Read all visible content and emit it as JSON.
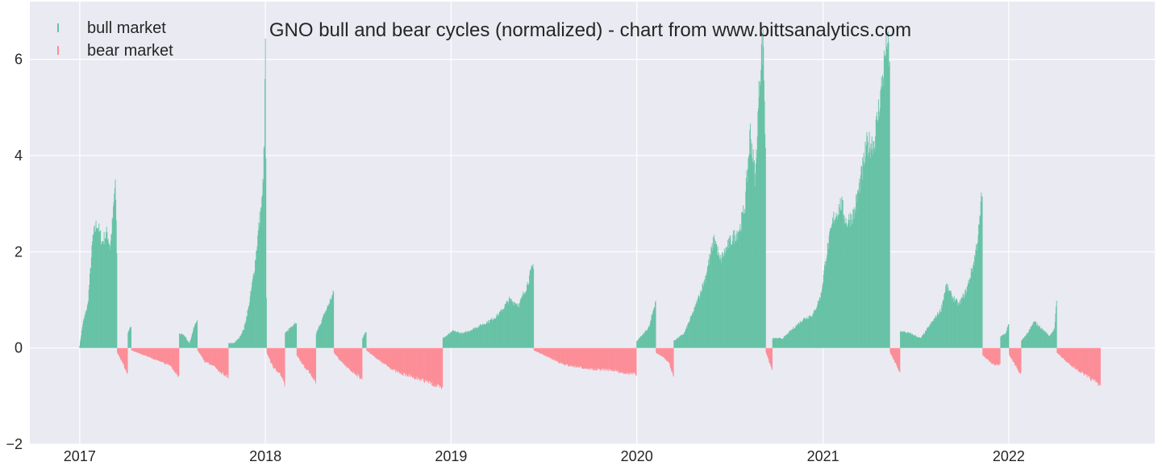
{
  "chart_data": {
    "type": "bar",
    "title": "GNO bull and bear cycles (normalized)  - chart from www.bittsanalytics.com",
    "xlabel": "",
    "ylabel": "",
    "ylim": [
      -2,
      7.2
    ],
    "xlim": [
      "2016-09-25",
      "2022-10-15"
    ],
    "x_ticks": [
      "2017",
      "2018",
      "2019",
      "2020",
      "2021",
      "2022"
    ],
    "x_tick_dates": [
      "2017-01-01",
      "2018-01-01",
      "2019-01-01",
      "2020-01-01",
      "2021-01-01",
      "2022-01-01"
    ],
    "y_ticks": [
      -2,
      0,
      2,
      4,
      6
    ],
    "grid": true,
    "legend_position": "top-left",
    "colors": {
      "bull": "#66c2a5",
      "bear": "#fc8d97",
      "background": "#eaeaf2",
      "grid": "#ffffff"
    },
    "series": [
      {
        "name": "bull market",
        "key": "bull"
      },
      {
        "name": "bear market",
        "key": "bear"
      }
    ],
    "cycles": [
      {
        "series": "bull",
        "start": "2017-01-01",
        "end": "2017-03-15",
        "points": [
          [
            0,
            0.05
          ],
          [
            6,
            0.5
          ],
          [
            16,
            0.9
          ],
          [
            26,
            2.3
          ],
          [
            34,
            2.6
          ],
          [
            44,
            2.2
          ],
          [
            54,
            2.4
          ],
          [
            60,
            2.1
          ],
          [
            66,
            2.8
          ],
          [
            70,
            3.5
          ],
          [
            73,
            2.0
          ]
        ]
      },
      {
        "series": "bear",
        "start": "2017-03-16",
        "end": "2017-04-05",
        "points": [
          [
            0,
            -0.1
          ],
          [
            10,
            -0.3
          ],
          [
            20,
            -0.55
          ]
        ]
      },
      {
        "series": "bull",
        "start": "2017-04-06",
        "end": "2017-04-12",
        "points": [
          [
            0,
            0.3
          ],
          [
            6,
            0.45
          ]
        ]
      },
      {
        "series": "bear",
        "start": "2017-04-13",
        "end": "2017-07-15",
        "points": [
          [
            0,
            -0.05
          ],
          [
            25,
            -0.15
          ],
          [
            50,
            -0.25
          ],
          [
            75,
            -0.35
          ],
          [
            92,
            -0.6
          ]
        ]
      },
      {
        "series": "bull",
        "start": "2017-07-16",
        "end": "2017-08-20",
        "points": [
          [
            0,
            0.3
          ],
          [
            10,
            0.25
          ],
          [
            20,
            0.1
          ],
          [
            28,
            0.4
          ],
          [
            35,
            0.6
          ]
        ]
      },
      {
        "series": "bear",
        "start": "2017-08-21",
        "end": "2017-10-20",
        "points": [
          [
            0,
            -0.05
          ],
          [
            15,
            -0.3
          ],
          [
            30,
            -0.35
          ],
          [
            45,
            -0.5
          ],
          [
            60,
            -0.6
          ]
        ]
      },
      {
        "series": "bull",
        "start": "2017-10-21",
        "end": "2018-01-03",
        "points": [
          [
            0,
            0.1
          ],
          [
            10,
            0.1
          ],
          [
            20,
            0.2
          ],
          [
            30,
            0.4
          ],
          [
            40,
            0.9
          ],
          [
            50,
            1.6
          ],
          [
            60,
            2.6
          ],
          [
            66,
            3.1
          ],
          [
            70,
            4.2
          ],
          [
            72,
            6.5
          ],
          [
            74,
            1.0
          ]
        ]
      },
      {
        "series": "bear",
        "start": "2018-01-04",
        "end": "2018-02-08",
        "points": [
          [
            0,
            -0.1
          ],
          [
            10,
            -0.35
          ],
          [
            20,
            -0.5
          ],
          [
            30,
            -0.6
          ],
          [
            35,
            -0.75
          ]
        ]
      },
      {
        "series": "bull",
        "start": "2018-02-09",
        "end": "2018-03-03",
        "points": [
          [
            0,
            0.3
          ],
          [
            12,
            0.45
          ],
          [
            22,
            0.55
          ]
        ]
      },
      {
        "series": "bear",
        "start": "2018-03-04",
        "end": "2018-04-10",
        "points": [
          [
            0,
            -0.15
          ],
          [
            15,
            -0.4
          ],
          [
            25,
            -0.5
          ],
          [
            37,
            -0.7
          ]
        ]
      },
      {
        "series": "bull",
        "start": "2018-04-11",
        "end": "2018-05-15",
        "points": [
          [
            0,
            0.3
          ],
          [
            12,
            0.6
          ],
          [
            24,
            0.9
          ],
          [
            34,
            1.15
          ]
        ]
      },
      {
        "series": "bear",
        "start": "2018-05-16",
        "end": "2018-07-10",
        "points": [
          [
            0,
            -0.1
          ],
          [
            15,
            -0.3
          ],
          [
            30,
            -0.45
          ],
          [
            45,
            -0.55
          ],
          [
            55,
            -0.65
          ]
        ]
      },
      {
        "series": "bull",
        "start": "2018-07-11",
        "end": "2018-07-18",
        "points": [
          [
            0,
            0.2
          ],
          [
            7,
            0.35
          ]
        ]
      },
      {
        "series": "bear",
        "start": "2018-07-19",
        "end": "2018-12-15",
        "points": [
          [
            0,
            -0.05
          ],
          [
            30,
            -0.3
          ],
          [
            60,
            -0.5
          ],
          [
            90,
            -0.6
          ],
          [
            120,
            -0.7
          ],
          [
            149,
            -0.85
          ]
        ]
      },
      {
        "series": "bull",
        "start": "2018-12-16",
        "end": "2019-06-12",
        "points": [
          [
            0,
            0.2
          ],
          [
            20,
            0.35
          ],
          [
            40,
            0.3
          ],
          [
            60,
            0.4
          ],
          [
            90,
            0.55
          ],
          [
            110,
            0.7
          ],
          [
            130,
            1.0
          ],
          [
            150,
            0.9
          ],
          [
            165,
            1.3
          ],
          [
            178,
            1.75
          ]
        ]
      },
      {
        "series": "bear",
        "start": "2019-06-13",
        "end": "2019-12-31",
        "points": [
          [
            0,
            -0.05
          ],
          [
            30,
            -0.2
          ],
          [
            60,
            -0.35
          ],
          [
            90,
            -0.4
          ],
          [
            120,
            -0.45
          ],
          [
            150,
            -0.45
          ],
          [
            170,
            -0.5
          ],
          [
            201,
            -0.55
          ]
        ]
      },
      {
        "series": "bull",
        "start": "2020-01-01",
        "end": "2020-02-07",
        "points": [
          [
            0,
            0.15
          ],
          [
            10,
            0.25
          ],
          [
            25,
            0.45
          ],
          [
            37,
            1.0
          ]
        ]
      },
      {
        "series": "bear",
        "start": "2020-02-08",
        "end": "2020-03-13",
        "points": [
          [
            0,
            -0.1
          ],
          [
            15,
            -0.2
          ],
          [
            25,
            -0.3
          ],
          [
            34,
            -0.6
          ]
        ]
      },
      {
        "series": "bull",
        "start": "2020-03-14",
        "end": "2020-09-10",
        "points": [
          [
            0,
            0.15
          ],
          [
            20,
            0.3
          ],
          [
            40,
            0.8
          ],
          [
            60,
            1.4
          ],
          [
            80,
            2.3
          ],
          [
            90,
            1.8
          ],
          [
            110,
            2.2
          ],
          [
            130,
            2.5
          ],
          [
            140,
            3.0
          ],
          [
            150,
            4.5
          ],
          [
            160,
            3.5
          ],
          [
            168,
            5.5
          ],
          [
            172,
            6.2
          ],
          [
            176,
            6.3
          ],
          [
            180,
            4.0
          ]
        ]
      },
      {
        "series": "bear",
        "start": "2020-09-11",
        "end": "2020-09-23",
        "points": [
          [
            0,
            -0.1
          ],
          [
            12,
            -0.45
          ]
        ]
      },
      {
        "series": "bull",
        "start": "2020-09-24",
        "end": "2021-05-12",
        "points": [
          [
            0,
            0.2
          ],
          [
            20,
            0.2
          ],
          [
            40,
            0.4
          ],
          [
            60,
            0.6
          ],
          [
            80,
            0.7
          ],
          [
            95,
            1.1
          ],
          [
            105,
            1.9
          ],
          [
            120,
            2.7
          ],
          [
            135,
            3.0
          ],
          [
            145,
            2.6
          ],
          [
            160,
            2.8
          ],
          [
            175,
            3.6
          ],
          [
            185,
            4.2
          ],
          [
            200,
            4.3
          ],
          [
            215,
            5.5
          ],
          [
            225,
            6.5
          ],
          [
            230,
            5.7
          ]
        ]
      },
      {
        "series": "bear",
        "start": "2021-05-13",
        "end": "2021-06-01",
        "points": [
          [
            0,
            -0.1
          ],
          [
            10,
            -0.3
          ],
          [
            19,
            -0.5
          ]
        ]
      },
      {
        "series": "bull",
        "start": "2021-06-02",
        "end": "2021-11-10",
        "points": [
          [
            0,
            0.35
          ],
          [
            20,
            0.3
          ],
          [
            40,
            0.2
          ],
          [
            60,
            0.5
          ],
          [
            80,
            0.8
          ],
          [
            90,
            1.3
          ],
          [
            100,
            1.1
          ],
          [
            115,
            0.9
          ],
          [
            130,
            1.2
          ],
          [
            145,
            1.8
          ],
          [
            155,
            2.5
          ],
          [
            160,
            3.2
          ]
        ]
      },
      {
        "series": "bear",
        "start": "2021-11-11",
        "end": "2021-12-15",
        "points": [
          [
            0,
            -0.15
          ],
          [
            15,
            -0.3
          ],
          [
            25,
            -0.35
          ],
          [
            34,
            -0.35
          ]
        ]
      },
      {
        "series": "bull",
        "start": "2021-12-16",
        "end": "2022-01-01",
        "points": [
          [
            0,
            0.25
          ],
          [
            10,
            0.3
          ],
          [
            16,
            0.5
          ]
        ]
      },
      {
        "series": "bear",
        "start": "2022-01-02",
        "end": "2022-01-25",
        "points": [
          [
            0,
            -0.15
          ],
          [
            12,
            -0.35
          ],
          [
            23,
            -0.55
          ]
        ]
      },
      {
        "series": "bull",
        "start": "2022-01-26",
        "end": "2022-04-05",
        "points": [
          [
            0,
            0.15
          ],
          [
            15,
            0.35
          ],
          [
            25,
            0.55
          ],
          [
            40,
            0.4
          ],
          [
            55,
            0.25
          ],
          [
            65,
            0.4
          ],
          [
            69,
            0.95
          ]
        ]
      },
      {
        "series": "bear",
        "start": "2022-04-06",
        "end": "2022-06-30",
        "points": [
          [
            0,
            -0.1
          ],
          [
            20,
            -0.3
          ],
          [
            40,
            -0.45
          ],
          [
            60,
            -0.6
          ],
          [
            75,
            -0.7
          ],
          [
            85,
            -0.78
          ]
        ]
      }
    ]
  }
}
